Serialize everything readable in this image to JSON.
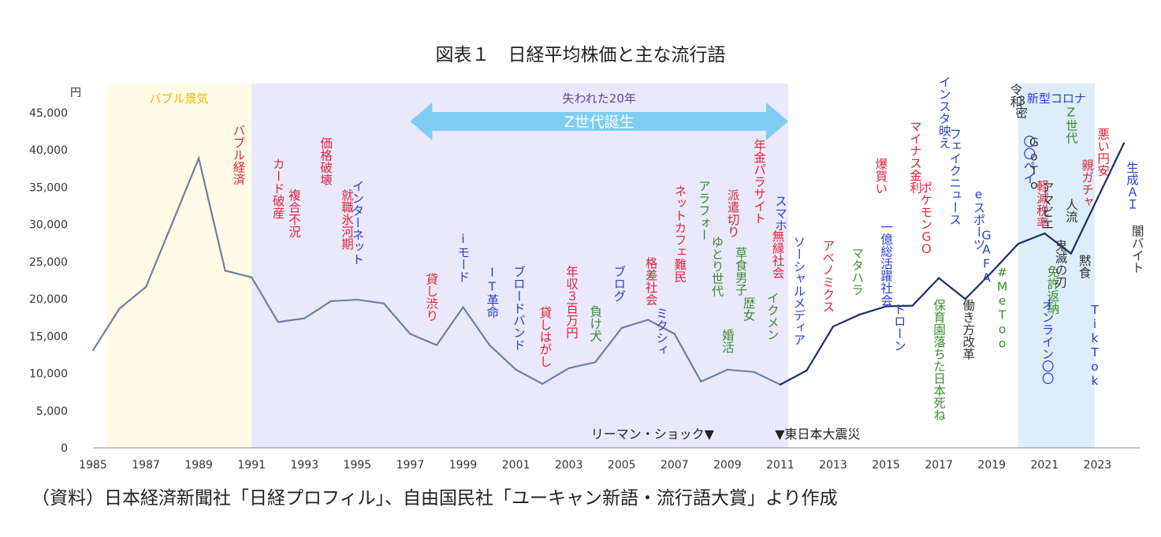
{
  "title": "図表１　日経平均株価と主な流行語",
  "source": "（資料）日本経済新聞社「日経プロフィル」、自由国民社「ユーキャン新語・流行語大賞」より作成",
  "colors": {
    "bubble_band": "#fffbe6",
    "lost_band": "#e9e9fb",
    "covid_band": "#ddeefa",
    "arrow": "#7fcef2",
    "line_early": "#6e7fa6",
    "line_late": "#1a2f6b",
    "red": "#e2243a",
    "blue": "#2b3fcf",
    "green": "#3c8d2e",
    "dark": "#333333",
    "purple": "#6a3fa0",
    "yellow": "#f2b800"
  },
  "chart_data": {
    "type": "line",
    "title": "図表１　日経平均株価と主な流行語",
    "ylabel": "円",
    "ylim": [
      0,
      45000
    ],
    "yticks": [
      0,
      5000,
      10000,
      15000,
      20000,
      25000,
      30000,
      35000,
      40000,
      45000
    ],
    "ytick_labels": [
      "0",
      "5,000",
      "10,000",
      "15,000",
      "20,000",
      "25,000",
      "30,000",
      "35,000",
      "40,000",
      "45,000"
    ],
    "xlim": [
      1985,
      2024.3
    ],
    "xticks": [
      1985,
      1987,
      1989,
      1991,
      1993,
      1995,
      1997,
      1999,
      2001,
      2003,
      2005,
      2007,
      2009,
      2011,
      2013,
      2015,
      2017,
      2019,
      2021,
      2023
    ],
    "x": [
      1985,
      1986,
      1987,
      1988,
      1989,
      1990,
      1991,
      1992,
      1993,
      1994,
      1995,
      1996,
      1997,
      1998,
      1999,
      2000,
      2001,
      2002,
      2003,
      2004,
      2005,
      2006,
      2007,
      2008,
      2009,
      2010,
      2011,
      2012,
      2013,
      2014,
      2015,
      2016,
      2017,
      2018,
      2019,
      2020,
      2021,
      2022,
      2023,
      2024
    ],
    "values": [
      13100,
      18700,
      21600,
      30200,
      38900,
      23800,
      22900,
      16900,
      17400,
      19700,
      19900,
      19400,
      15300,
      13800,
      18900,
      13800,
      10500,
      8600,
      10700,
      11500,
      16100,
      17200,
      15300,
      8900,
      10500,
      10200,
      8500,
      10400,
      16300,
      17900,
      19000,
      19100,
      22800,
      20000,
      23600,
      27400,
      28800,
      26100,
      33500,
      40900
    ],
    "split_year": 2011,
    "bands": [
      {
        "label": "バブル景気",
        "from": 1985.5,
        "to": 1991
      },
      {
        "label": "",
        "from": 1991,
        "to": 2011.3
      },
      {
        "label": "新型コロナ",
        "from": 2020,
        "to": 2022.9
      }
    ],
    "arrow": {
      "top_label": "失われた20年",
      "label": "Z世代誕生",
      "from": 1997,
      "to": 2011.3
    },
    "events": [
      {
        "label": "リーマン・ショック▼",
        "x": 2008.5
      },
      {
        "label": "▼東日本大震災",
        "x": 2010.8
      }
    ],
    "annotations": [
      {
        "x": 1990.5,
        "y": 43500,
        "color": "red",
        "text": "バブル経済"
      },
      {
        "x": 1992,
        "y": 39000,
        "color": "red",
        "text": "カード破産"
      },
      {
        "x": 1992.6,
        "y": 34800,
        "color": "red",
        "text": "複合不況"
      },
      {
        "x": 1993.8,
        "y": 41800,
        "color": "red",
        "text": "価格破壊"
      },
      {
        "x": 1994.6,
        "y": 34800,
        "color": "red",
        "text": "就職氷河期"
      },
      {
        "x": 1995,
        "y": 36000,
        "color": "blue",
        "text": "インターネット"
      },
      {
        "x": 1997.8,
        "y": 23500,
        "color": "red",
        "text": "貸し渋り"
      },
      {
        "x": 1999,
        "y": 29000,
        "color": "blue",
        "text": "iモード"
      },
      {
        "x": 2000.1,
        "y": 24500,
        "color": "blue",
        "text": "IT革命"
      },
      {
        "x": 2001.1,
        "y": 24500,
        "color": "blue",
        "text": "ブロードバンド"
      },
      {
        "x": 2002.1,
        "y": 19000,
        "color": "red",
        "text": "貸しはがし"
      },
      {
        "x": 2003.1,
        "y": 24500,
        "color": "red",
        "text": "年収３百万円"
      },
      {
        "x": 2004,
        "y": 19200,
        "color": "green",
        "text": "負け犬"
      },
      {
        "x": 2004.9,
        "y": 24500,
        "color": "blue",
        "text": "ブログ"
      },
      {
        "x": 2006.1,
        "y": 25700,
        "color": "red",
        "text": "格差社会"
      },
      {
        "x": 2006.5,
        "y": 18900,
        "color": "blue",
        "text": "ミクシィ"
      },
      {
        "x": 2007.2,
        "y": 35300,
        "color": "red",
        "text": "ネットカフェ難民"
      },
      {
        "x": 2008.1,
        "y": 36000,
        "color": "green",
        "text": "アラフォー"
      },
      {
        "x": 2008.6,
        "y": 28500,
        "color": "green",
        "text": "ゆとり世代"
      },
      {
        "x": 2009,
        "y": 16000,
        "color": "green",
        "text": "婚活"
      },
      {
        "x": 2009.2,
        "y": 34800,
        "color": "red",
        "text": "派遣切り"
      },
      {
        "x": 2009.5,
        "y": 27000,
        "color": "green",
        "text": "草食男子"
      },
      {
        "x": 2009.8,
        "y": 20300,
        "color": "green",
        "text": "歴女"
      },
      {
        "x": 2010.2,
        "y": 41500,
        "color": "red",
        "text": "年金パラサイト"
      },
      {
        "x": 2010.9,
        "y": 29300,
        "color": "red",
        "text": "無縁社会"
      },
      {
        "x": 2010.7,
        "y": 21000,
        "color": "green",
        "text": "イクメン"
      },
      {
        "x": 2011,
        "y": 34000,
        "color": "blue",
        "text": "スマホ"
      },
      {
        "x": 2011.7,
        "y": 28500,
        "color": "blue",
        "text": "ソーシャルメディア"
      },
      {
        "x": 2012.8,
        "y": 28000,
        "color": "red",
        "text": "アベノミクス"
      },
      {
        "x": 2013.9,
        "y": 27000,
        "color": "green",
        "text": "マタハラ"
      },
      {
        "x": 2014.8,
        "y": 39000,
        "color": "red",
        "text": "爆買い"
      },
      {
        "x": 2015,
        "y": 30500,
        "color": "blue",
        "text": "一億総活躍社会"
      },
      {
        "x": 2015.5,
        "y": 19500,
        "color": "blue",
        "text": "ドローン"
      },
      {
        "x": 2016.1,
        "y": 44000,
        "color": "red",
        "text": "マイナス金利"
      },
      {
        "x": 2016.5,
        "y": 35800,
        "color": "red",
        "text": "ポケモンＧＯ"
      },
      {
        "x": 2017,
        "y": 20000,
        "color": "green",
        "text": "保育園落ちた日本死ね"
      },
      {
        "x": 2017.2,
        "y": 51000,
        "color": "blue",
        "text": "インスタ映え"
      },
      {
        "x": 2017.6,
        "y": 43000,
        "color": "blue",
        "text": "フェイクニュース"
      },
      {
        "x": 2018.1,
        "y": 20000,
        "color": "dark",
        "text": "働き方改革"
      },
      {
        "x": 2018.5,
        "y": 35000,
        "color": "blue",
        "text": "eスポーツ"
      },
      {
        "x": 2018.8,
        "y": 29500,
        "color": "blue",
        "text": "GAFA"
      },
      {
        "x": 2019.4,
        "y": 24500,
        "color": "green",
        "text": "#MeToo"
      },
      {
        "x": 2019.9,
        "y": 49000,
        "color": "dark",
        "text": "令和"
      },
      {
        "x": 2020.4,
        "y": 42000,
        "color": "blue",
        "text": "〇〇ペイ"
      },
      {
        "x": 2020.9,
        "y": 36000,
        "color": "red",
        "text": "軽減税率"
      },
      {
        "x": 2021.3,
        "y": 24500,
        "color": "green",
        "text": "免許返納"
      },
      {
        "x": 2020.1,
        "y": 47500,
        "color": "dark",
        "text": "３密"
      },
      {
        "x": 2020.6,
        "y": 42000,
        "color": "dark",
        "text": "GoTo"
      },
      {
        "x": 2021.1,
        "y": 35800,
        "color": "dark",
        "text": "アマビエ"
      },
      {
        "x": 2021.6,
        "y": 28000,
        "color": "dark",
        "text": "鬼滅の刃"
      },
      {
        "x": 2021.1,
        "y": 20000,
        "color": "blue",
        "text": "オンライン〇〇"
      },
      {
        "x": 2022,
        "y": 46000,
        "color": "green",
        "text": "Z世代"
      },
      {
        "x": 2022.6,
        "y": 38800,
        "color": "red",
        "text": "親ガチャ"
      },
      {
        "x": 2022,
        "y": 33500,
        "color": "dark",
        "text": "人流"
      },
      {
        "x": 2022.5,
        "y": 26000,
        "color": "dark",
        "text": "黙食"
      },
      {
        "x": 2022.9,
        "y": 19500,
        "color": "blue",
        "text": "TikTok"
      },
      {
        "x": 2023.2,
        "y": 43000,
        "color": "red",
        "text": "悪い円安"
      },
      {
        "x": 2024.3,
        "y": 38500,
        "color": "blue",
        "text": "生成ＡＩ"
      },
      {
        "x": 2024.5,
        "y": 30000,
        "color": "dark",
        "text": "闇バイト"
      }
    ]
  }
}
